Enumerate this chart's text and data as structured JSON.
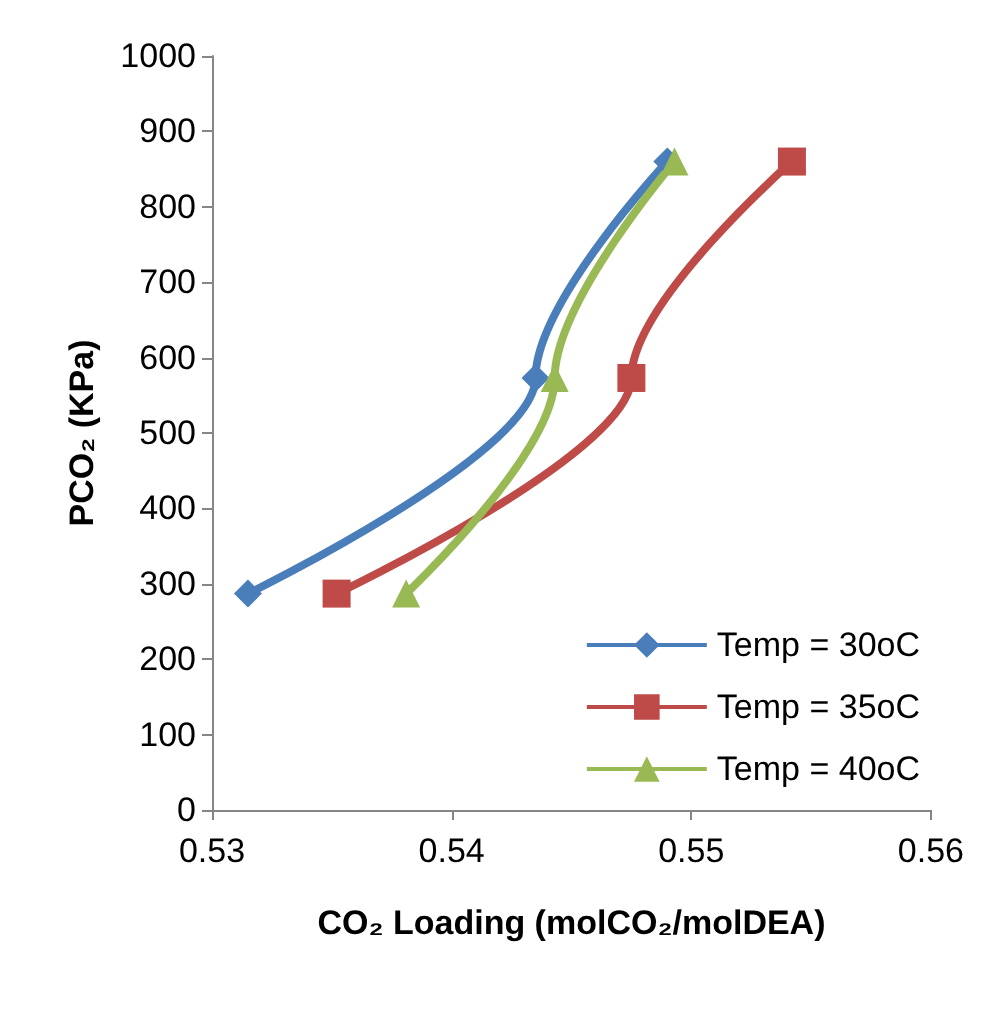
{
  "chart_data": {
    "type": "line",
    "xlabel": "CO₂ Loading (molCO₂/molDEA)",
    "ylabel": "PCO₂ (KPa)",
    "xlim": [
      0.53,
      0.56
    ],
    "xticks": [
      0.53,
      0.54,
      0.55,
      0.56
    ],
    "ylim": [
      0,
      1000
    ],
    "yticks": [
      0,
      100,
      200,
      300,
      400,
      500,
      600,
      700,
      800,
      900,
      1000
    ],
    "grid": false,
    "legend": "bottom right",
    "line_style": "solid",
    "series": [
      {
        "name": "Temp = 30oC",
        "color": "#4a7ebb",
        "marker": "diamond",
        "x": [
          0.5315,
          0.5435,
          0.549
        ],
        "values": [
          287,
          573,
          860
        ]
      },
      {
        "name": "Temp = 35oC",
        "color": "#be4b48",
        "marker": "square",
        "x": [
          0.5352,
          0.5475,
          0.5542
        ],
        "values": [
          287,
          573,
          860
        ]
      },
      {
        "name": "Temp = 40oC",
        "color": "#98b954",
        "marker": "triangle",
        "x": [
          0.5381,
          0.5443,
          0.5493
        ],
        "values": [
          287,
          573,
          860
        ]
      }
    ]
  }
}
